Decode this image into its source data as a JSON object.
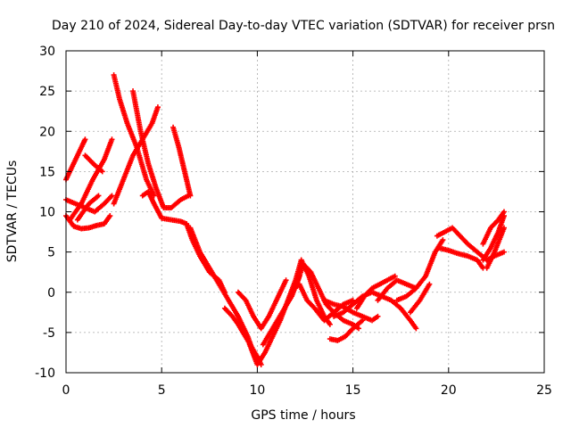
{
  "chart_data": {
    "type": "scatter",
    "title": "Day 210 of 2024, Sidereal Day-to-day VTEC variation (SDTVAR) for receiver prsn",
    "xlabel": "GPS time / hours",
    "ylabel": "SDTVAR / TECUs",
    "xlim": [
      0,
      25
    ],
    "ylim": [
      -10,
      30
    ],
    "xticks": [
      0,
      5,
      10,
      15,
      20,
      25
    ],
    "yticks": [
      -10,
      -5,
      0,
      5,
      10,
      15,
      20,
      25,
      30
    ],
    "grid": true,
    "marker": "+",
    "color": "#ff0000",
    "series": [
      {
        "x": [
          0.0,
          0.3,
          0.6,
          0.9,
          1.0
        ],
        "y": [
          14.0,
          15.5,
          17.0,
          18.5,
          19.0
        ]
      },
      {
        "x": [
          0.0,
          0.4,
          0.8,
          1.2,
          1.6,
          2.0,
          2.3
        ],
        "y": [
          9.5,
          8.2,
          7.9,
          8.0,
          8.3,
          8.5,
          9.5
        ]
      },
      {
        "x": [
          0.0,
          0.5,
          1.0,
          1.5,
          2.0,
          2.4
        ],
        "y": [
          11.5,
          11.0,
          10.5,
          10.0,
          11.0,
          12.0
        ]
      },
      {
        "x": [
          0.2,
          0.8,
          1.4,
          2.0,
          2.4
        ],
        "y": [
          9.0,
          11.0,
          14.0,
          16.5,
          19.0
        ]
      },
      {
        "x": [
          0.6,
          1.2,
          1.7
        ],
        "y": [
          9.0,
          11.0,
          12.0
        ]
      },
      {
        "x": [
          1.0,
          1.5,
          1.9
        ],
        "y": [
          17.0,
          15.8,
          15.0
        ]
      },
      {
        "x": [
          2.5,
          2.8,
          3.2,
          3.7,
          4.2,
          4.6
        ],
        "y": [
          27.0,
          24.0,
          21.0,
          18.0,
          14.0,
          12.0
        ]
      },
      {
        "x": [
          2.5,
          3.0,
          3.5,
          4.0,
          4.5,
          4.8
        ],
        "y": [
          11.0,
          14.0,
          17.0,
          19.0,
          21.0,
          23.0
        ]
      },
      {
        "x": [
          3.5,
          3.9,
          4.3,
          4.7,
          5.1,
          5.5,
          6.0,
          6.4
        ],
        "y": [
          25.0,
          20.0,
          16.0,
          13.0,
          10.5,
          10.5,
          11.5,
          12.0
        ]
      },
      {
        "x": [
          4.0,
          4.3,
          4.6,
          5.0,
          5.5,
          6.0,
          6.3
        ],
        "y": [
          12.0,
          12.5,
          11.0,
          9.2,
          9.0,
          8.8,
          8.5
        ]
      },
      {
        "x": [
          5.6,
          5.9,
          6.1,
          6.3,
          6.5
        ],
        "y": [
          20.5,
          18.0,
          16.0,
          14.0,
          12.0
        ]
      },
      {
        "x": [
          6.3,
          6.6,
          7.0,
          7.5,
          8.0,
          8.3
        ],
        "y": [
          8.5,
          6.5,
          4.5,
          2.5,
          1.5,
          0.0
        ]
      },
      {
        "x": [
          6.5,
          7.0,
          7.5,
          8.0,
          8.5,
          9.0,
          9.5,
          9.8,
          10.0
        ],
        "y": [
          8.0,
          5.0,
          3.0,
          1.0,
          -1.0,
          -3.0,
          -5.5,
          -7.5,
          -8.5
        ]
      },
      {
        "x": [
          8.3,
          8.7,
          9.0,
          9.5,
          10.0,
          10.2
        ],
        "y": [
          -2.0,
          -3.0,
          -4.0,
          -6.0,
          -8.0,
          -9.0
        ]
      },
      {
        "x": [
          9.0,
          9.4,
          9.8,
          10.2,
          10.6,
          11.0,
          11.5
        ],
        "y": [
          0.0,
          -1.0,
          -3.0,
          -4.5,
          -3.0,
          -1.0,
          1.5
        ]
      },
      {
        "x": [
          9.6,
          10.0,
          10.4,
          10.8,
          11.2,
          11.6,
          12.0,
          12.3
        ],
        "y": [
          -6.5,
          -9.0,
          -7.5,
          -5.5,
          -3.5,
          -1.0,
          1.5,
          4.0
        ]
      },
      {
        "x": [
          10.3,
          10.8,
          11.3,
          11.8,
          12.2
        ],
        "y": [
          -6.5,
          -4.5,
          -2.5,
          -0.5,
          2.0
        ]
      },
      {
        "x": [
          12.0,
          12.4,
          12.8,
          13.2,
          13.6,
          14.0,
          14.5,
          15.0,
          15.3
        ],
        "y": [
          0.5,
          3.5,
          2.5,
          0.5,
          -1.5,
          -2.5,
          -3.5,
          -4.0,
          -4.5
        ]
      },
      {
        "x": [
          12.3,
          12.7,
          13.1,
          13.5,
          13.8
        ],
        "y": [
          4.0,
          2.0,
          -1.0,
          -3.0,
          -4.0
        ]
      },
      {
        "x": [
          12.2,
          12.6,
          13.0,
          13.5,
          14.0,
          14.5,
          15.0
        ],
        "y": [
          1.0,
          -1.0,
          -2.0,
          -3.5,
          -2.5,
          -1.5,
          -1.0
        ]
      },
      {
        "x": [
          13.5,
          14.0,
          14.5,
          15.0,
          15.5,
          16.0,
          16.3
        ],
        "y": [
          -1.0,
          -1.5,
          -1.8,
          -2.5,
          -3.0,
          -3.5,
          -3.0
        ]
      },
      {
        "x": [
          13.8,
          14.2,
          14.6,
          15.0,
          15.5
        ],
        "y": [
          -5.8,
          -6.0,
          -5.5,
          -4.5,
          -3.5
        ]
      },
      {
        "x": [
          14.0,
          14.5,
          15.0,
          15.5,
          16.0,
          16.5,
          17.0,
          17.5,
          18.0,
          18.3
        ],
        "y": [
          -3.0,
          -2.5,
          -1.5,
          -0.5,
          0.0,
          -0.5,
          -1.0,
          -2.0,
          -3.5,
          -4.5
        ]
      },
      {
        "x": [
          15.2,
          15.6,
          16.0,
          16.4,
          16.8,
          17.2
        ],
        "y": [
          -2.0,
          -0.5,
          0.5,
          1.0,
          1.5,
          2.0
        ]
      },
      {
        "x": [
          16.3,
          16.8,
          17.3,
          17.8,
          18.3
        ],
        "y": [
          -1.0,
          0.5,
          1.5,
          1.0,
          0.5
        ]
      },
      {
        "x": [
          17.3,
          17.8,
          18.3,
          18.8,
          19.3,
          19.7
        ],
        "y": [
          -1.0,
          -0.5,
          0.5,
          2.0,
          5.0,
          6.5
        ]
      },
      {
        "x": [
          18.0,
          18.5,
          19.0
        ],
        "y": [
          -2.5,
          -1.0,
          1.0
        ]
      },
      {
        "x": [
          19.4,
          19.8,
          20.2,
          20.6,
          21.0,
          21.5,
          22.0
        ],
        "y": [
          7.0,
          7.5,
          8.0,
          7.0,
          6.0,
          5.0,
          4.0
        ]
      },
      {
        "x": [
          19.5,
          20.0,
          20.5,
          21.0,
          21.5,
          21.8
        ],
        "y": [
          5.5,
          5.2,
          4.8,
          4.5,
          4.0,
          3.0
        ]
      },
      {
        "x": [
          21.8,
          22.2,
          22.6,
          22.9
        ],
        "y": [
          6.0,
          8.0,
          9.0,
          10.0
        ]
      },
      {
        "x": [
          21.8,
          22.2,
          22.6,
          22.9
        ],
        "y": [
          4.0,
          5.5,
          7.5,
          9.5
        ]
      },
      {
        "x": [
          22.0,
          22.4,
          22.9
        ],
        "y": [
          3.0,
          5.0,
          8.0
        ]
      },
      {
        "x": [
          22.0,
          22.4,
          22.9
        ],
        "y": [
          4.0,
          4.5,
          5.0
        ]
      }
    ]
  }
}
